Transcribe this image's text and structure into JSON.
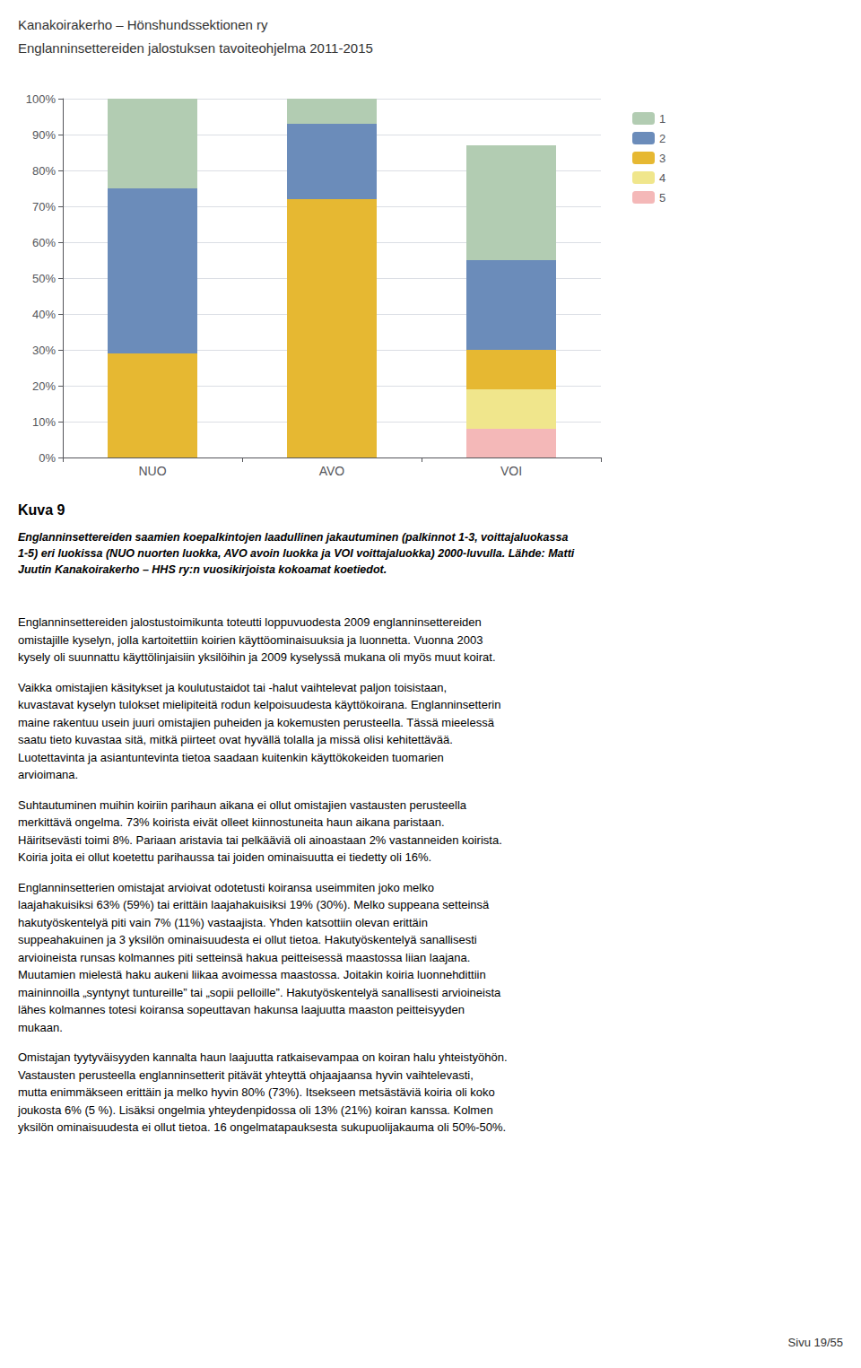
{
  "chart_data": {
    "type": "bar",
    "stacked": true,
    "categories": [
      "NUO",
      "AVO",
      "VOI"
    ],
    "series": [
      {
        "name": "1",
        "color": "#b2ccb2",
        "values": [
          25,
          7,
          32
        ]
      },
      {
        "name": "2",
        "color": "#6b8cba",
        "values": [
          46,
          21,
          25
        ]
      },
      {
        "name": "3",
        "color": "#e6b832",
        "values": [
          29,
          72,
          11
        ]
      },
      {
        "name": "4",
        "color": "#f0e68c",
        "values": [
          0,
          0,
          11
        ]
      },
      {
        "name": "5",
        "color": "#f4b8b8",
        "values": [
          0,
          0,
          8
        ]
      }
    ],
    "ylim": [
      0,
      100
    ],
    "yticks": [
      {
        "value": 0,
        "label": "0%"
      },
      {
        "value": 10,
        "label": "10%"
      },
      {
        "value": 20,
        "label": "20%"
      },
      {
        "value": 30,
        "label": "30%"
      },
      {
        "value": 40,
        "label": "40%"
      },
      {
        "value": 50,
        "label": "50%"
      },
      {
        "value": 60,
        "label": "60%"
      },
      {
        "value": 70,
        "label": "70%"
      },
      {
        "value": 80,
        "label": "80%"
      },
      {
        "value": 90,
        "label": "90%"
      },
      {
        "value": 100,
        "label": "100%"
      }
    ],
    "grid": true,
    "legend": "right"
  },
  "header": [
    "Kanakoirakerho – Hönshundssektionen ry",
    "Englanninsettereiden jalostuksen tavoiteohjelma 2011-2015"
  ],
  "caption_title": "Kuva 9",
  "caption": "Englanninsettereiden saamien koepalkintojen laadullinen jakautuminen (palkinnot 1-3, voittajaluokassa\n1-5) eri luokissa (NUO nuorten luokka, AVO avoin luokka ja VOI voittajaluokka) 2000-luvulla. Lähde: Matti\nJuutin Kanakoirakerho – HHS ry:n vuosikirjoista kokoamat koetiedot.",
  "paragraphs": [
    "Englanninsettereiden jalostustoimikunta toteutti loppuvuodesta 2009 englanninsettereiden\nomistajille kyselyn, jolla kartoitettiin koirien käyttöominaisuuksia ja luonnetta. Vuonna 2003\nkysely oli suunnattu käyttölinjaisiin yksilöihin ja 2009 kyselyssä mukana oli myös muut koirat.",
    "Vaikka omistajien käsitykset ja koulutustaidot tai -halut vaihtelevat paljon toisistaan,\nkuvastavat kyselyn tulokset mielipiteitä rodun kelpoisuudesta käyttökoirana. Englanninsetterin\nmaine rakentuu usein juuri omistajien puheiden ja kokemusten perusteella. Tässä mieelessä\nsaatu tieto kuvastaa sitä, mitkä piirteet ovat hyvällä tolalla ja missä olisi kehitettävää.\nLuotettavinta ja asiantuntevinta tietoa saadaan kuitenkin käyttökokeiden tuomarien\narvioimana.",
    "Suhtautuminen muihin koiriin parihaun aikana ei ollut omistajien vastausten perusteella\nmerkittävä ongelma. 73% koirista eivät olleet kiinnostuneita haun aikana paristaan.\nHäiritsevästi toimi 8%. Pariaan aristavia tai pelkääviä oli ainoastaan 2% vastanneiden koirista.\nKoiria joita ei ollut koetettu parihaussa tai joiden ominaisuutta ei tiedetty oli 16%.",
    "Englanninsetterien omistajat arvioivat odotetusti koiransa useimmiten joko melko\nlaajahakuisiksi 63% (59%) tai erittäin laajahakuisiksi 19% (30%). Melko suppeana setteinsä\nhakutyöskentelyä piti vain 7% (11%) vastaajista. Yhden katsottiin olevan erittäin\nsuppeahakuinen ja 3 yksilön ominaisuudesta ei ollut tietoa. Hakutyöskentelyä sanallisesti\narvioineista runsas kolmannes piti setteinsä hakua peitteisessä maastossa liian laajana.\nMuutamien mielestä haku aukeni liikaa avoimessa maastossa. Joitakin koiria luonnehdittiin\nmaininnoilla „syntynyt tuntureille” tai „sopii pelloille”. Hakutyöskentelyä sanallisesti arvioineista\nlähes kolmannes totesi koiransa sopeuttavan hakunsa laajuutta maaston peitteisyyden\nmukaan.",
    "Omistajan tyytyväisyyden kannalta haun laajuutta ratkaisevampaa on koiran halu yhteistyöhön.\nVastausten perusteella englanninsetterit pitävät yhteyttä ohjaajaansa hyvin vaihtelevasti,\nmutta enimmäkseen erittäin ja melko hyvin 80% (73%). Itsekseen metsästäviä koiria oli koko\njoukosta 6% (5 %). Lisäksi ongelmia yhteydenpidossa oli 13% (21%) koiran kanssa. Kolmen\nyksilön ominaisuudesta ei ollut tietoa. 16 ongelmatapauksesta sukupuolijakauma oli 50%-50%."
  ],
  "footer": "Sivu 19/55"
}
